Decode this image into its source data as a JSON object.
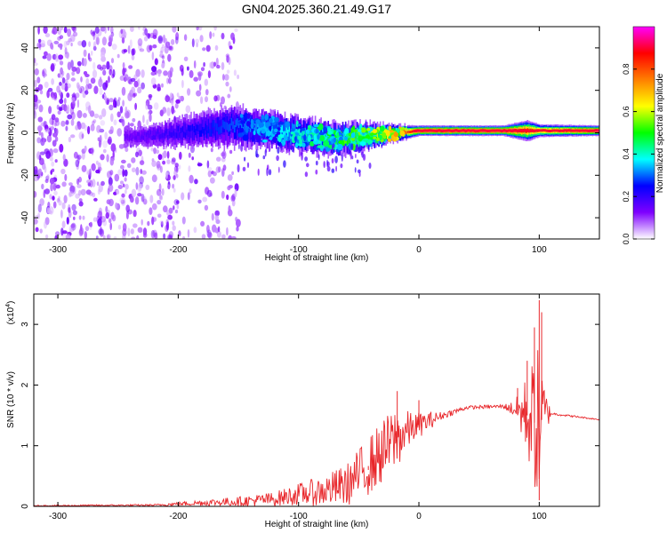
{
  "figure_title": "GN04.2025.360.21.49.G17",
  "chart_data": [
    {
      "type": "heatmap",
      "title": "GN04.2025.360.21.49.G17",
      "xlabel": "Height of straight line (km)",
      "ylabel": "Frequency (Hz)",
      "xlim": [
        -320,
        150
      ],
      "ylim": [
        -50,
        50
      ],
      "x_ticks": [
        -300,
        -200,
        -100,
        0,
        100
      ],
      "y_ticks": [
        -40,
        -20,
        0,
        20,
        40
      ],
      "colorbar": {
        "label": "Normalized spectral amplitude",
        "range": [
          0,
          1
        ],
        "ticks": [
          "0.0",
          "0.2",
          "0.4",
          "0.6",
          "0.8"
        ],
        "tick_values": [
          0,
          0.2,
          0.4,
          0.6,
          0.8
        ],
        "stops": [
          "#ffffff",
          "#7f00ff",
          "#0000ff",
          "#00ffff",
          "#00ff00",
          "#ffff00",
          "#ff7f00",
          "#ff0000",
          "#ff00ff"
        ]
      },
      "trace_center_hz": [
        {
          "x": -240,
          "y": -2
        },
        {
          "x": -200,
          "y": 0
        },
        {
          "x": -160,
          "y": 3
        },
        {
          "x": -130,
          "y": 2
        },
        {
          "x": -100,
          "y": -1
        },
        {
          "x": -70,
          "y": -3
        },
        {
          "x": -50,
          "y": -2
        },
        {
          "x": -30,
          "y": -1
        },
        {
          "x": -15,
          "y": 0
        },
        {
          "x": 0,
          "y": 1
        },
        {
          "x": 50,
          "y": 1
        },
        {
          "x": 100,
          "y": 1
        },
        {
          "x": 150,
          "y": 1
        }
      ],
      "trace_halfwidth_hz": [
        {
          "x": -240,
          "y": 4
        },
        {
          "x": -160,
          "y": 9
        },
        {
          "x": -100,
          "y": 8
        },
        {
          "x": -50,
          "y": 7
        },
        {
          "x": -20,
          "y": 4
        },
        {
          "x": 0,
          "y": 2.5
        },
        {
          "x": 70,
          "y": 2.5
        },
        {
          "x": 90,
          "y": 5
        },
        {
          "x": 100,
          "y": 3
        },
        {
          "x": 150,
          "y": 2.5
        }
      ],
      "peak_amplitude": [
        {
          "x": -240,
          "y": 0.15
        },
        {
          "x": -150,
          "y": 0.3
        },
        {
          "x": -100,
          "y": 0.4
        },
        {
          "x": -60,
          "y": 0.5
        },
        {
          "x": -20,
          "y": 0.65
        },
        {
          "x": 0,
          "y": 0.95
        },
        {
          "x": 70,
          "y": 0.95
        },
        {
          "x": 100,
          "y": 0.8
        },
        {
          "x": 150,
          "y": 0.95
        }
      ],
      "noise_region_x": [
        -320,
        -150
      ]
    },
    {
      "type": "line",
      "xlabel": "Height of straight line (km)",
      "ylabel": "SNR (10 * v/v)",
      "scale_label": "(x10",
      "scale_exponent": "4",
      "xlim": [
        -320,
        150
      ],
      "ylim": [
        0,
        3.5
      ],
      "x_ticks": [
        -300,
        -200,
        -100,
        0,
        100
      ],
      "y_ticks": [
        0,
        1,
        2,
        3
      ],
      "series": [
        {
          "name": "SNR",
          "color": "#e8262a",
          "envelope": [
            {
              "x": -320,
              "mean": 0.01,
              "noise": 0.01
            },
            {
              "x": -220,
              "mean": 0.02,
              "noise": 0.015
            },
            {
              "x": -180,
              "mean": 0.06,
              "noise": 0.05
            },
            {
              "x": -150,
              "mean": 0.08,
              "noise": 0.08
            },
            {
              "x": -120,
              "mean": 0.12,
              "noise": 0.12
            },
            {
              "x": -100,
              "mean": 0.2,
              "noise": 0.18
            },
            {
              "x": -80,
              "mean": 0.25,
              "noise": 0.25
            },
            {
              "x": -60,
              "mean": 0.35,
              "noise": 0.35
            },
            {
              "x": -40,
              "mean": 0.7,
              "noise": 0.5
            },
            {
              "x": -20,
              "mean": 1.1,
              "noise": 0.55
            },
            {
              "x": -5,
              "mean": 1.3,
              "noise": 0.25
            },
            {
              "x": 20,
              "mean": 1.5,
              "noise": 0.06
            },
            {
              "x": 40,
              "mean": 1.63,
              "noise": 0.03
            },
            {
              "x": 70,
              "mean": 1.65,
              "noise": 0.03
            },
            {
              "x": 80,
              "mean": 1.6,
              "noise": 0.15
            },
            {
              "x": 90,
              "mean": 1.5,
              "noise": 0.7
            },
            {
              "x": 100,
              "mean": 1.3,
              "noise": 1.4
            },
            {
              "x": 104,
              "mean": 1.55,
              "noise": 0.5
            },
            {
              "x": 110,
              "mean": 1.53,
              "noise": 0.02
            },
            {
              "x": 150,
              "mean": 1.43,
              "noise": 0.01
            }
          ],
          "peaks": [
            {
              "x": -42,
              "y": 0.6
            },
            {
              "x": -18,
              "y": 1.9
            },
            {
              "x": 0,
              "y": 1.75
            },
            {
              "x": 82,
              "y": 1.95
            },
            {
              "x": 90,
              "y": 2.4
            },
            {
              "x": 96,
              "y": 2.95
            },
            {
              "x": 100,
              "y": 3.4
            },
            {
              "x": 102,
              "y": 3.2
            },
            {
              "x": 100,
              "y": 0.1
            }
          ]
        }
      ]
    }
  ]
}
